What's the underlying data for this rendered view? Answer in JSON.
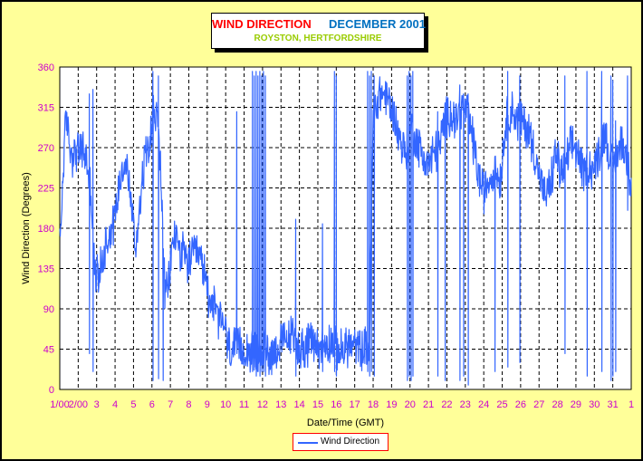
{
  "title": {
    "main": "WIND DIRECTION",
    "date": "DECEMBER 2001",
    "location": "ROYSTON, HERTFORDSHIRE"
  },
  "colors": {
    "background": "#ffff99",
    "series": "#3366ff",
    "axis_labels": "#cc00cc",
    "main_title": "#ff0000",
    "date_title": "#0070c0",
    "location": "#99cc00"
  },
  "chart_data": {
    "type": "line",
    "xlabel": "Date/Time (GMT)",
    "ylabel": "Wind Direction (Degrees)",
    "ylim": [
      0,
      360
    ],
    "yticks": [
      0,
      45,
      90,
      135,
      180,
      225,
      270,
      315,
      360
    ],
    "xlim": [
      1,
      32
    ],
    "xtick_positions": [
      1,
      2,
      3,
      4,
      5,
      6,
      7,
      8,
      9,
      10,
      11,
      12,
      13,
      14,
      15,
      16,
      17,
      18,
      19,
      20,
      21,
      22,
      23,
      24,
      25,
      26,
      27,
      28,
      29,
      30,
      31,
      32
    ],
    "xtick_labels": [
      "1/00",
      "2/00",
      "3",
      "4",
      "5",
      "6",
      "7",
      "8",
      "9",
      "10",
      "11",
      "12",
      "13",
      "14",
      "15",
      "16",
      "17",
      "18",
      "19",
      "20",
      "21",
      "22",
      "23",
      "24",
      "25",
      "26",
      "27",
      "28",
      "29",
      "30",
      "31",
      "1"
    ],
    "grid": true,
    "legend": "bottom-center",
    "series": [
      {
        "name": "Wind Direction",
        "anchors": [
          [
            1.0,
            160
          ],
          [
            1.1,
            200
          ],
          [
            1.25,
            280
          ],
          [
            1.4,
            300
          ],
          [
            1.6,
            262
          ],
          [
            1.9,
            265
          ],
          [
            2.1,
            265
          ],
          [
            2.3,
            268
          ],
          [
            2.5,
            250
          ],
          [
            2.7,
            220
          ],
          [
            2.9,
            125
          ],
          [
            3.1,
            130
          ],
          [
            3.3,
            140
          ],
          [
            3.5,
            165
          ],
          [
            3.7,
            175
          ],
          [
            3.9,
            185
          ],
          [
            4.1,
            210
          ],
          [
            4.3,
            240
          ],
          [
            4.5,
            255
          ],
          [
            4.7,
            240
          ],
          [
            4.9,
            205
          ],
          [
            5.1,
            155
          ],
          [
            5.3,
            200
          ],
          [
            5.5,
            240
          ],
          [
            5.7,
            270
          ],
          [
            5.9,
            285
          ],
          [
            6.1,
            310
          ],
          [
            6.3,
            300
          ],
          [
            6.5,
            235
          ],
          [
            6.7,
            105
          ],
          [
            6.9,
            115
          ],
          [
            7.1,
            160
          ],
          [
            7.3,
            175
          ],
          [
            7.5,
            155
          ],
          [
            7.7,
            150
          ],
          [
            7.9,
            140
          ],
          [
            8.2,
            148
          ],
          [
            8.5,
            150
          ],
          [
            8.7,
            140
          ],
          [
            8.9,
            125
          ],
          [
            9.1,
            100
          ],
          [
            9.3,
            100
          ],
          [
            9.5,
            82
          ],
          [
            9.7,
            75
          ],
          [
            9.9,
            78
          ],
          [
            10.1,
            48
          ],
          [
            10.4,
            45
          ],
          [
            10.8,
            45
          ],
          [
            11.2,
            45
          ],
          [
            11.5,
            40
          ],
          [
            11.8,
            40
          ],
          [
            12.1,
            45
          ],
          [
            12.4,
            40
          ],
          [
            12.7,
            45
          ],
          [
            13.0,
            50
          ],
          [
            13.3,
            55
          ],
          [
            13.6,
            60
          ],
          [
            13.9,
            50
          ],
          [
            14.2,
            45
          ],
          [
            14.5,
            50
          ],
          [
            14.8,
            55
          ],
          [
            15.1,
            45
          ],
          [
            15.4,
            50
          ],
          [
            15.7,
            55
          ],
          [
            16.0,
            45
          ],
          [
            16.3,
            42
          ],
          [
            16.6,
            50
          ],
          [
            16.9,
            48
          ],
          [
            17.2,
            45
          ],
          [
            17.5,
            45
          ],
          [
            17.8,
            50
          ],
          [
            18.0,
            300
          ],
          [
            18.3,
            330
          ],
          [
            18.6,
            330
          ],
          [
            18.9,
            320
          ],
          [
            19.2,
            300
          ],
          [
            19.5,
            275
          ],
          [
            19.8,
            265
          ],
          [
            20.1,
            290
          ],
          [
            20.4,
            275
          ],
          [
            20.7,
            260
          ],
          [
            21.0,
            250
          ],
          [
            21.3,
            265
          ],
          [
            21.6,
            270
          ],
          [
            21.9,
            300
          ],
          [
            22.2,
            310
          ],
          [
            22.5,
            300
          ],
          [
            22.8,
            315
          ],
          [
            23.1,
            310
          ],
          [
            23.4,
            280
          ],
          [
            23.7,
            240
          ],
          [
            24.0,
            220
          ],
          [
            24.3,
            235
          ],
          [
            24.6,
            245
          ],
          [
            24.9,
            235
          ],
          [
            25.2,
            300
          ],
          [
            25.5,
            315
          ],
          [
            25.8,
            300
          ],
          [
            26.1,
            300
          ],
          [
            26.4,
            290
          ],
          [
            26.7,
            270
          ],
          [
            27.0,
            240
          ],
          [
            27.3,
            215
          ],
          [
            27.6,
            225
          ],
          [
            27.9,
            265
          ],
          [
            28.2,
            240
          ],
          [
            28.5,
            255
          ],
          [
            28.8,
            275
          ],
          [
            29.1,
            265
          ],
          [
            29.4,
            240
          ],
          [
            29.7,
            250
          ],
          [
            30.0,
            245
          ],
          [
            30.3,
            270
          ],
          [
            30.6,
            290
          ],
          [
            30.9,
            250
          ],
          [
            31.2,
            260
          ],
          [
            31.5,
            280
          ],
          [
            31.8,
            250
          ],
          [
            32.0,
            235
          ]
        ],
        "spikes": [
          [
            2.6,
            330,
            40
          ],
          [
            2.8,
            335,
            20
          ],
          [
            6.05,
            355,
            10
          ],
          [
            6.35,
            350,
            12
          ],
          [
            6.6,
            90,
            10
          ],
          [
            10.6,
            310,
            40
          ],
          [
            11.45,
            355,
            20
          ],
          [
            11.55,
            350,
            25
          ],
          [
            11.65,
            355,
            15
          ],
          [
            11.75,
            350,
            20
          ],
          [
            11.85,
            355,
            15
          ],
          [
            11.95,
            350,
            20
          ],
          [
            12.05,
            355,
            20
          ],
          [
            12.15,
            350,
            15
          ],
          [
            13.8,
            190,
            15
          ],
          [
            15.25,
            185,
            20
          ],
          [
            15.9,
            355,
            20
          ],
          [
            16.0,
            350,
            15
          ],
          [
            17.7,
            355,
            20
          ],
          [
            17.8,
            350,
            15
          ],
          [
            17.9,
            355,
            20
          ],
          [
            18.05,
            350,
            15
          ],
          [
            19.85,
            350,
            10
          ],
          [
            19.95,
            355,
            15
          ],
          [
            20.05,
            350,
            10
          ],
          [
            20.15,
            355,
            15
          ],
          [
            21.5,
            310,
            15
          ],
          [
            21.9,
            320,
            10
          ],
          [
            22.7,
            340,
            10
          ],
          [
            22.9,
            330,
            15
          ],
          [
            23.15,
            330,
            5
          ],
          [
            24.6,
            260,
            20
          ],
          [
            25.3,
            355,
            25
          ],
          [
            25.95,
            350,
            30
          ],
          [
            28.4,
            350,
            40
          ],
          [
            29.6,
            355,
            15
          ],
          [
            30.4,
            355,
            20
          ],
          [
            30.9,
            350,
            10
          ],
          [
            31.0,
            345,
            15
          ],
          [
            31.15,
            300,
            20
          ],
          [
            31.8,
            350,
            200
          ]
        ],
        "noise_amplitude": 22
      }
    ]
  },
  "legend_label": "Wind Direction"
}
